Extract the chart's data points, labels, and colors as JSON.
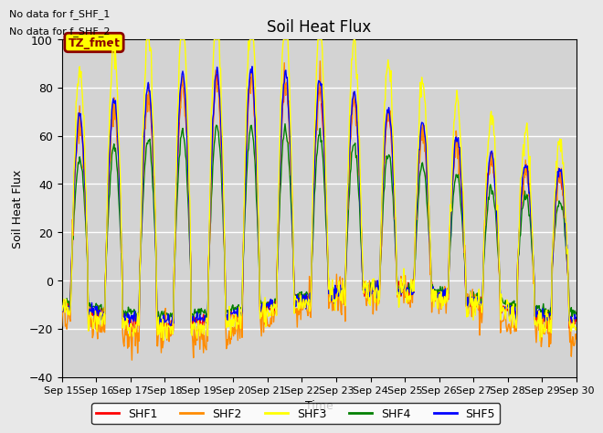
{
  "title": "Soil Heat Flux",
  "ylabel": "Soil Heat Flux",
  "xlabel": "Time",
  "ylim": [
    -40,
    100
  ],
  "yticks": [
    -40,
    -20,
    0,
    20,
    40,
    60,
    80,
    100
  ],
  "annotations": [
    "No data for f_SHF_1",
    "No data for f_SHF_2"
  ],
  "tz_label": "TZ_fmet",
  "tz_box_color": "#ffff00",
  "tz_border_color": "#8B0000",
  "x_tick_labels": [
    "Sep 15",
    "Sep 16",
    "Sep 17",
    "Sep 18",
    "Sep 19",
    "Sep 20",
    "Sep 21",
    "Sep 22",
    "Sep 23",
    "Sep 24",
    "Sep 25",
    "Sep 26",
    "Sep 27",
    "Sep 28",
    "Sep 29",
    "Sep 30"
  ],
  "colors": {
    "SHF1": "#ff0000",
    "SHF2": "#ff8c00",
    "SHF3": "#ffff00",
    "SHF4": "#008000",
    "SHF5": "#0000ff"
  },
  "legend_labels": [
    "SHF1",
    "SHF2",
    "SHF3",
    "SHF4",
    "SHF5"
  ],
  "background_color": "#e8e8e8",
  "plot_bg_color": "#d3d3d3",
  "grid_color": "#ffffff",
  "n_days": 15,
  "pts_per_day": 48
}
